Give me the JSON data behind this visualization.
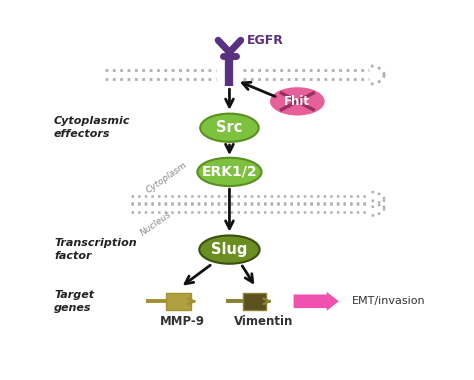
{
  "bg_color": "#ffffff",
  "egfr_color": "#5a3080",
  "egfr_label": "EGFR",
  "fhit_color": "#e8609a",
  "fhit_label": "Fhit",
  "src_color": "#7dc13e",
  "src_label": "Src",
  "erk_color": "#7dc13e",
  "erk_label": "ERK1/2",
  "slug_color": "#6b8e23",
  "slug_label": "Slug",
  "mmp9_line_color": "#a09030",
  "mmp9_rect_color": "#b0a040",
  "mmp9_label": "MMP-9",
  "vimentin_line_color": "#8a8030",
  "vimentin_rect_color": "#5a5020",
  "vimentin_label": "Vimentin",
  "emt_color": "#f050b0",
  "emt_label": "EMT/invasion",
  "left_label_cytoplasmic": "Cytoplasmic\neffectors",
  "left_label_transcription": "Transcription\nfactor",
  "left_label_target": "Target\ngenes",
  "cytoplasm_label": "Cytoplasm",
  "nucleus_label": "Nucleus",
  "membrane_dot_color": "#b0b0b0",
  "arrow_color": "#111111"
}
